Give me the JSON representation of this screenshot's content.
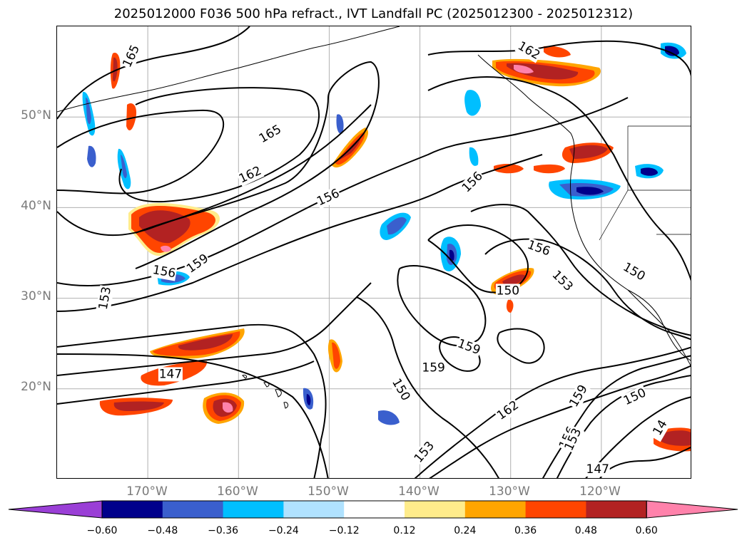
{
  "title": "2025012000 F036 500 hPa refract., IVT Landfall PC (2025012300 - 2025012312)",
  "latitude_labels": [
    "50°N",
    "40°N",
    "30°N",
    "20°N"
  ],
  "longitude_labels": [
    "170°W",
    "160°W",
    "150°W",
    "140°W",
    "130°W",
    "120°W"
  ],
  "map_extent": {
    "lon_min": -180,
    "lon_max": -110,
    "lat_min": 10,
    "lat_max": 60
  },
  "grid": true,
  "colorbar": {
    "ticks": [
      "−0.60",
      "−0.48",
      "−0.36",
      "−0.24",
      "−0.12",
      "0.12",
      "0.24",
      "0.36",
      "0.48",
      "0.60"
    ],
    "colors": [
      "#9a3fd6",
      "#00008b",
      "#3a5fcd",
      "#00bfff",
      "#b0e2ff",
      "#ffffff",
      "#ffec8b",
      "#ffa500",
      "#ff4500",
      "#b22222",
      "#ff82ab"
    ],
    "extend": "both",
    "orientation": "horizontal"
  },
  "contour_labels": [
    {
      "text": "165",
      "lon": -171.8,
      "lat": 56.7,
      "angle": -65
    },
    {
      "text": "165",
      "lon": -156.5,
      "lat": 48.1,
      "angle": -30
    },
    {
      "text": "162",
      "lon": -158.7,
      "lat": 43.6,
      "angle": -25
    },
    {
      "text": "156",
      "lon": -150.1,
      "lat": 41.1,
      "angle": -25
    },
    {
      "text": "159",
      "lon": -164.5,
      "lat": 33.8,
      "angle": -35
    },
    {
      "text": "156",
      "lon": -168.2,
      "lat": 32.9,
      "angle": 10
    },
    {
      "text": "153",
      "lon": -174.7,
      "lat": 30.0,
      "angle": -80
    },
    {
      "text": "156",
      "lon": -134.2,
      "lat": 42.8,
      "angle": -45
    },
    {
      "text": "162",
      "lon": -128.0,
      "lat": 57.3,
      "angle": 30
    },
    {
      "text": "156",
      "lon": -126.9,
      "lat": 35.5,
      "angle": 20
    },
    {
      "text": "153",
      "lon": -124.3,
      "lat": 31.9,
      "angle": 45
    },
    {
      "text": "150",
      "lon": -130.3,
      "lat": 30.8,
      "angle": 0
    },
    {
      "text": "150",
      "lon": -116.4,
      "lat": 32.9,
      "angle": 30
    },
    {
      "text": "159",
      "lon": -134.6,
      "lat": 24.6,
      "angle": 20
    },
    {
      "text": "159",
      "lon": -138.5,
      "lat": 22.3,
      "angle": 0
    },
    {
      "text": "150",
      "lon": -142.1,
      "lat": 19.9,
      "angle": 60
    },
    {
      "text": "147",
      "lon": -167.5,
      "lat": 21.6,
      "angle": 0
    },
    {
      "text": "162",
      "lon": -130.3,
      "lat": 17.6,
      "angle": -35
    },
    {
      "text": "159",
      "lon": -122.5,
      "lat": 19.2,
      "angle": -60
    },
    {
      "text": "150",
      "lon": -116.3,
      "lat": 19.1,
      "angle": -25
    },
    {
      "text": "156",
      "lon": -123.7,
      "lat": 14.6,
      "angle": -65
    },
    {
      "text": "153",
      "lon": -123.1,
      "lat": 14.4,
      "angle": -65
    },
    {
      "text": "153",
      "lon": -139.5,
      "lat": 13.0,
      "angle": -50
    },
    {
      "text": "147",
      "lon": -120.4,
      "lat": 11.1,
      "angle": 0
    },
    {
      "text": "14",
      "lon": -113.5,
      "lat": 15.7,
      "angle": -60
    }
  ]
}
